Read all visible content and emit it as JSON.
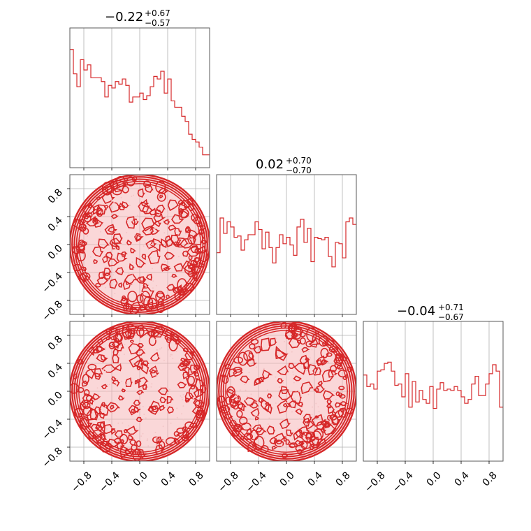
{
  "colors": {
    "series": "#d62728",
    "fill": "#f5b6b8",
    "grid": "#b0b0b0"
  },
  "chart_data": {
    "type": "corner",
    "xlim": [
      -1.0,
      1.0
    ],
    "ylim": [
      -1.0,
      1.0
    ],
    "ticks": [
      -0.8,
      -0.4,
      0.0,
      0.4,
      0.8
    ],
    "tick_labels": [
      "−0.8",
      "−0.4",
      "0.0",
      "0.4",
      "0.8"
    ],
    "grid": true,
    "parameters": [
      {
        "title": {
          "median": "−0.22",
          "plus": "+0.67",
          "minus": "−0.57"
        }
      },
      {
        "title": {
          "median": "0.02",
          "plus": "+0.70",
          "minus": "−0.70"
        }
      },
      {
        "title": {
          "median": "−0.04",
          "plus": "+0.71",
          "minus": "−0.67"
        }
      }
    ],
    "histograms": [
      {
        "type": "step",
        "counts": [
          0.92,
          0.73,
          0.63,
          0.84,
          0.76,
          0.8,
          0.7,
          0.7,
          0.7,
          0.67,
          0.55,
          0.64,
          0.62,
          0.67,
          0.65,
          0.69,
          0.64,
          0.51,
          0.55,
          0.55,
          0.58,
          0.53,
          0.56,
          0.63,
          0.71,
          0.69,
          0.75,
          0.58,
          0.69,
          0.52,
          0.47,
          0.47,
          0.4,
          0.36,
          0.26,
          0.22,
          0.2,
          0.16,
          0.1,
          0.1
        ]
      },
      {
        "type": "step",
        "counts": [
          0.48,
          0.75,
          0.63,
          0.72,
          0.68,
          0.6,
          0.61,
          0.5,
          0.58,
          0.62,
          0.62,
          0.72,
          0.66,
          0.51,
          0.64,
          0.52,
          0.4,
          0.52,
          0.62,
          0.55,
          0.6,
          0.54,
          0.46,
          0.68,
          0.74,
          0.56,
          0.67,
          0.41,
          0.6,
          0.59,
          0.58,
          0.6,
          0.45,
          0.37,
          0.56,
          0.55,
          0.44,
          0.72,
          0.75,
          0.7
        ]
      },
      {
        "type": "step",
        "counts": [
          0.67,
          0.58,
          0.6,
          0.56,
          0.7,
          0.71,
          0.76,
          0.77,
          0.7,
          0.59,
          0.6,
          0.5,
          0.68,
          0.42,
          0.62,
          0.46,
          0.55,
          0.48,
          0.45,
          0.58,
          0.41,
          0.56,
          0.61,
          0.55,
          0.56,
          0.55,
          0.58,
          0.55,
          0.5,
          0.45,
          0.48,
          0.6,
          0.66,
          0.51,
          0.51,
          0.6,
          0.68,
          0.75,
          0.7,
          0.42
        ]
      }
    ],
    "contours": [
      {
        "panel": "p2-vs-p1",
        "shape": "uniform-disk"
      },
      {
        "panel": "p3-vs-p1",
        "shape": "uniform-disk"
      },
      {
        "panel": "p3-vs-p2",
        "shape": "uniform-disk"
      }
    ]
  }
}
